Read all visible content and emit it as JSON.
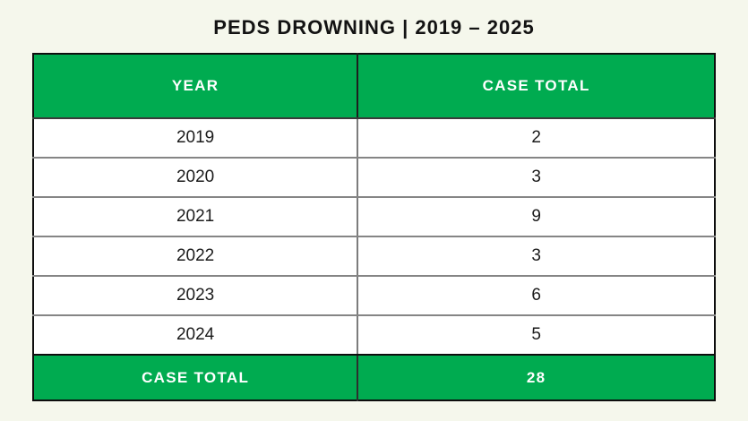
{
  "title": "PEDS DROWNING | 2019 – 2025",
  "colors": {
    "accent_green": "#00ab50",
    "page_background": "#f5f7ec",
    "band_text": "#ffffff",
    "body_text": "#1b1b1b",
    "title_text": "#131313",
    "outer_border": "#0d0d0d",
    "inner_border": "#7c7c7c"
  },
  "table": {
    "headers": [
      "YEAR",
      "CASE TOTAL"
    ],
    "rows": [
      {
        "year": "2019",
        "cases": "2"
      },
      {
        "year": "2020",
        "cases": "3"
      },
      {
        "year": "2021",
        "cases": "9"
      },
      {
        "year": "2022",
        "cases": "3"
      },
      {
        "year": "2023",
        "cases": "6"
      },
      {
        "year": "2024",
        "cases": "5"
      }
    ],
    "footer": {
      "label": "CASE TOTAL",
      "total": "28"
    }
  },
  "chart_data": {
    "type": "table",
    "title": "PEDS DROWNING | 2019 – 2025",
    "columns": [
      "YEAR",
      "CASE TOTAL"
    ],
    "rows": [
      [
        "2019",
        2
      ],
      [
        "2020",
        3
      ],
      [
        "2021",
        9
      ],
      [
        "2022",
        3
      ],
      [
        "2023",
        6
      ],
      [
        "2024",
        5
      ]
    ],
    "footer_row": [
      "CASE TOTAL",
      28
    ],
    "x": [
      "2019",
      "2020",
      "2021",
      "2022",
      "2023",
      "2024"
    ],
    "values": [
      2,
      3,
      9,
      3,
      6,
      5
    ],
    "total": 28
  }
}
